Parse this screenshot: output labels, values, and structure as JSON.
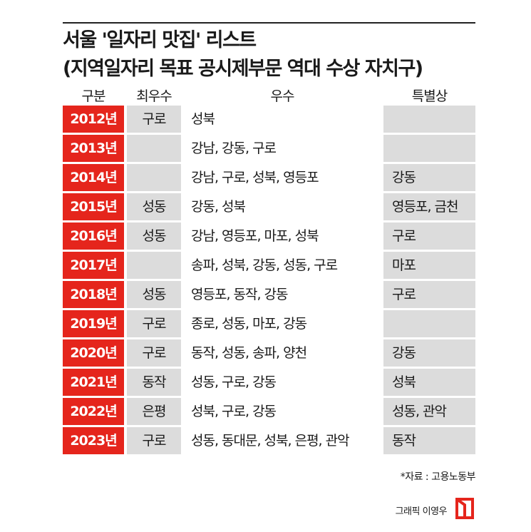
{
  "title": "서울 '일자리 맛집' 리스트",
  "subtitle": "(지역일자리 목표 공시제부문 역대 수상 자치구)",
  "columns": {
    "year": "구분",
    "best": "최우수",
    "excellent": "우수",
    "special": "특별상"
  },
  "rows": [
    {
      "year": "2012년",
      "best": "구로",
      "excellent": "성북",
      "special": ""
    },
    {
      "year": "2013년",
      "best": "",
      "excellent": "강남, 강동, 구로",
      "special": ""
    },
    {
      "year": "2014년",
      "best": "",
      "excellent": "강남, 구로, 성북, 영등포",
      "special": "강동"
    },
    {
      "year": "2015년",
      "best": "성동",
      "excellent": "강동, 성북",
      "special": "영등포, 금천"
    },
    {
      "year": "2016년",
      "best": "성동",
      "excellent": "강남, 영등포, 마포, 성북",
      "special": "구로"
    },
    {
      "year": "2017년",
      "best": "",
      "excellent": "송파, 성북, 강동, 성동, 구로",
      "special": "마포"
    },
    {
      "year": "2018년",
      "best": "성동",
      "excellent": "영등포, 동작, 강동",
      "special": "구로"
    },
    {
      "year": "2019년",
      "best": "구로",
      "excellent": "종로, 성동, 마포, 강동",
      "special": ""
    },
    {
      "year": "2020년",
      "best": "구로",
      "excellent": "동작, 성동, 송파, 양천",
      "special": "강동"
    },
    {
      "year": "2021년",
      "best": "동작",
      "excellent": "성동, 구로, 강동",
      "special": "성북"
    },
    {
      "year": "2022년",
      "best": "은평",
      "excellent": "성북, 구로, 강동",
      "special": "성동, 관악"
    },
    {
      "year": "2023년",
      "best": "구로",
      "excellent": "성동, 동대문, 성북, 은평, 관악",
      "special": "동작"
    }
  ],
  "source": "*자료 : 고용노동부",
  "credit": "그래픽 이영우",
  "colors": {
    "accent": "#e5251c",
    "cell_gray": "#dcdcdc",
    "text": "#1a1a1a"
  },
  "icons": {
    "logo": "publisher-logo-icon"
  }
}
